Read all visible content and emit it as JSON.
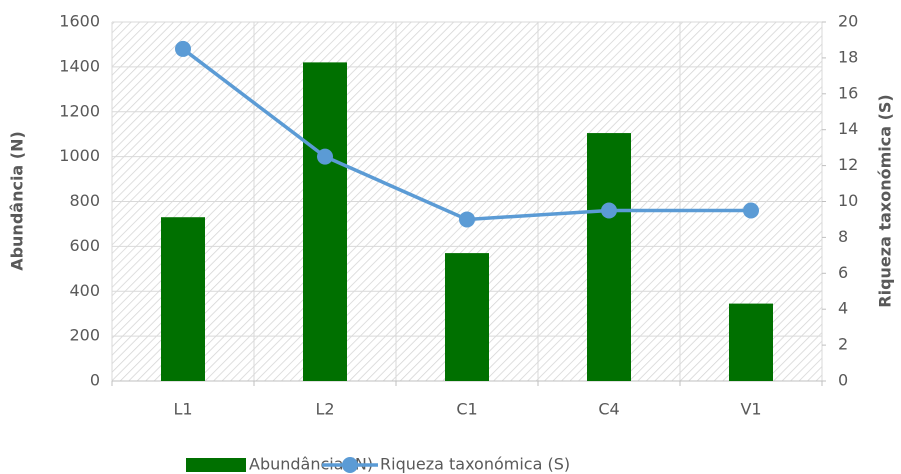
{
  "chart_data": {
    "type": "bar",
    "categories": [
      "L1",
      "L2",
      "C1",
      "C4",
      "V1"
    ],
    "series": [
      {
        "name": "Abundância (N)",
        "type": "bar",
        "color": "#007000",
        "values": [
          730,
          1420,
          570,
          1105,
          345
        ]
      },
      {
        "name": "Riqueza taxonómica (S)",
        "type": "line",
        "axis": "y2",
        "color": "#5b9bd5",
        "values": [
          18.5,
          12.5,
          9,
          9.5,
          9.5
        ]
      }
    ],
    "y_label": "Abundância (N)",
    "y2_label": "Riqueza taxonómica (S)",
    "ylim": [
      0,
      1600
    ],
    "yticks": [
      0,
      200,
      400,
      600,
      800,
      1000,
      1200,
      1400,
      1600
    ],
    "y2lim": [
      0,
      20
    ],
    "y2ticks": [
      0,
      2,
      4,
      6,
      8,
      10,
      12,
      14,
      16,
      18,
      20
    ],
    "grid": true,
    "legend": "bottom"
  }
}
